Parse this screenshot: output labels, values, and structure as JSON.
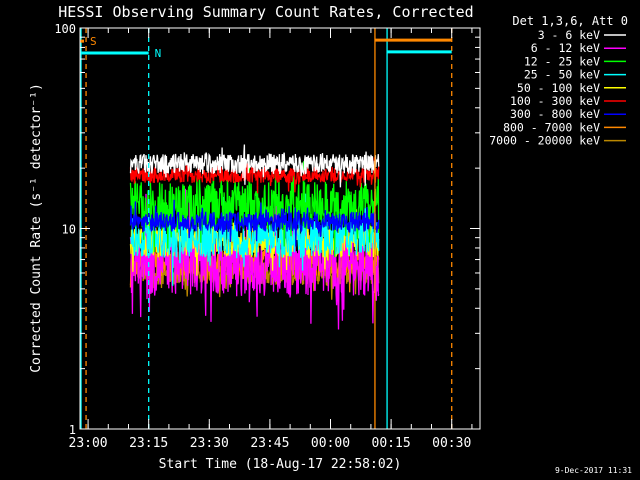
{
  "chart_data": {
    "type": "line",
    "title": "HESSI Observing Summary Count Rates, Corrected",
    "xlabel": "Start Time (18-Aug-17 22:58:02)",
    "ylabel": "Corrected Count Rate (s⁻¹ detector⁻¹)",
    "y_scale": "log",
    "ylim": [
      1,
      100
    ],
    "x_unit": "minutes after 22:58:02",
    "xlim": [
      0,
      99
    ],
    "x_ticks": [
      {
        "label": "23:00",
        "x": 2
      },
      {
        "label": "23:15",
        "x": 17
      },
      {
        "label": "23:30",
        "x": 32
      },
      {
        "label": "23:45",
        "x": 47
      },
      {
        "label": "00:00",
        "x": 62
      },
      {
        "label": "00:15",
        "x": 77
      },
      {
        "label": "00:30",
        "x": 92
      }
    ],
    "y_ticks": [
      {
        "label": "1",
        "y": 1
      },
      {
        "label": "10",
        "y": 10
      },
      {
        "label": "100",
        "y": 100
      }
    ],
    "legend_title": "Det 1,3,6, Att 0",
    "legend_placement": "right, outside",
    "series": [
      {
        "name": "3 - 6 keV",
        "color": "#ffffff",
        "level": 21.0,
        "spread": 0.05
      },
      {
        "name": "6 - 12 keV",
        "color": "#ff00ff",
        "level": 6.8,
        "spread": 0.17
      },
      {
        "name": "12 - 25 keV",
        "color": "#00ff00",
        "level": 13.0,
        "spread": 0.12
      },
      {
        "name": "25 - 50 keV",
        "color": "#00ffff",
        "level": 9.0,
        "spread": 0.1
      },
      {
        "name": "50 - 100 keV",
        "color": "#ffff00",
        "level": 8.6,
        "spread": 0.08
      },
      {
        "name": "100 - 300 keV",
        "color": "#ff0000",
        "level": 18.5,
        "spread": 0.04
      },
      {
        "name": "300 - 800 keV",
        "color": "#0000ff",
        "level": 10.8,
        "spread": 0.05
      },
      {
        "name": "800 - 7000 keV",
        "color": "#ff8800",
        "level": 6.8,
        "spread": 0.07
      },
      {
        "name": "7000 - 20000 keV",
        "color": "#bb8800",
        "level": 6.0,
        "spread": 0.06
      }
    ],
    "data_window": {
      "start": 12.5,
      "end": 74
    },
    "attenuator_bars": [
      {
        "label": "S",
        "x_start": 0,
        "x_end": 1,
        "y": 86,
        "color": "#ff8800"
      },
      {
        "label": "N",
        "x_start": 0,
        "x_end": 17,
        "y": 75,
        "color": "#00ffff"
      },
      {
        "label": "",
        "x_start": 73,
        "x_end": 92,
        "y": 87,
        "color": "#ff8800"
      },
      {
        "label": "",
        "x_start": 76,
        "x_end": 92,
        "y": 76,
        "color": "#00ffff"
      }
    ],
    "vertical_markers": [
      {
        "x": 0,
        "color": "#00ffff",
        "style": "solid"
      },
      {
        "x": 1.5,
        "color": "#ff8800",
        "style": "dashed"
      },
      {
        "x": 17,
        "color": "#00ffff",
        "style": "dashed"
      },
      {
        "x": 73,
        "color": "#ff8800",
        "style": "solid"
      },
      {
        "x": 76,
        "color": "#00ffff",
        "style": "solid"
      },
      {
        "x": 92,
        "color": "#ff8800",
        "style": "dashed"
      }
    ]
  },
  "footer": {
    "timestamp": "9-Dec-2017 11:31"
  }
}
